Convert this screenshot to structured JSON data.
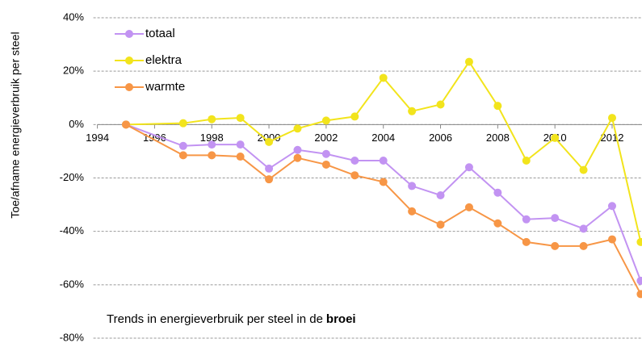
{
  "chart_data": {
    "type": "line",
    "y_label": "Toe/afname energieverbruik per steel",
    "annotation": [
      "Trends in energieverbruik per steel in de",
      "broei"
    ],
    "x": [
      1995,
      1997,
      1998,
      1999,
      2000,
      2001,
      2002,
      2003,
      2004,
      2005,
      2006,
      2007,
      2008,
      2009,
      2010,
      2011,
      2012,
      2013
    ],
    "series": [
      {
        "name": "totaal",
        "color": "#c293f2",
        "values": [
          0,
          -8,
          -7.5,
          -7.5,
          -16.5,
          -9.5,
          -11,
          -13.5,
          -13.5,
          -23,
          -26.5,
          -16,
          -25.5,
          -35.5,
          -35,
          -39,
          -30.5,
          -58.5
        ]
      },
      {
        "name": "elektra",
        "color": "#f2e41c",
        "values": [
          0,
          0.5,
          2,
          2.5,
          -6.5,
          -1.5,
          1.5,
          3,
          17.5,
          5,
          7.5,
          23.5,
          7,
          -13.5,
          -5,
          -17,
          2.5,
          -44
        ]
      },
      {
        "name": "warmte",
        "color": "#f79646",
        "values": [
          0,
          -11.5,
          -11.5,
          -12,
          -20.5,
          -12.5,
          -15,
          -19,
          -21.5,
          -32.5,
          -37.5,
          -31,
          -37,
          -44,
          -45.5,
          -45.5,
          -43,
          -63.5
        ]
      }
    ],
    "xlim": [
      1994,
      2013
    ],
    "xticks": [
      1994,
      1996,
      1998,
      2000,
      2002,
      2004,
      2006,
      2008,
      2010,
      2012
    ],
    "ylim": [
      -80,
      40
    ],
    "yticks": [
      {
        "value": 40,
        "label": "40%"
      },
      {
        "value": 20,
        "label": "20%"
      },
      {
        "value": 0,
        "label": "0%"
      },
      {
        "value": -20,
        "label": "-20%"
      },
      {
        "value": -40,
        "label": "-40%"
      },
      {
        "value": -60,
        "label": "-60%"
      },
      {
        "value": -80,
        "label": "-80%"
      }
    ],
    "grid": true,
    "legend": "top-left"
  }
}
